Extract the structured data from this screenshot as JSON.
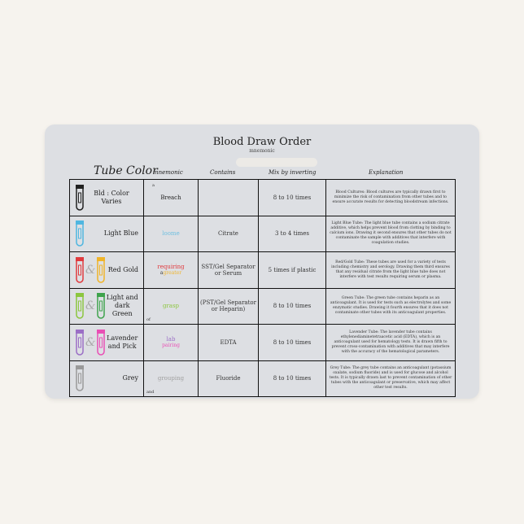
{
  "title": "Blood Draw Order",
  "subtitle": "mnemonic",
  "headers": {
    "tube_color": "Tube Color",
    "mnemonic": "mnemonic",
    "contains": "Contains",
    "mix": "Mix by inverting",
    "explanation": "Explanation"
  },
  "rows": [
    {
      "color_name": "Bld : Color Varies",
      "tubes": [
        "#222222"
      ],
      "mn_small": "a",
      "mn_word": "Breach",
      "mn_color": "#222222",
      "contains": "",
      "mix": "8 to 10 times",
      "explanation": "Blood Cultures: Blood cultures are typically drawn first to minimize the risk of contamination from other tubes and to ensure accurate results for detecting bloodstream infections."
    },
    {
      "color_name": "Light Blue",
      "tubes": [
        "#4fb6e0"
      ],
      "mn_small": "",
      "mn_word": "loome",
      "mn_color": "#6fbfe0",
      "contains": "Citrate",
      "mix": "3 to 4 times",
      "explanation": "Light Blue Tube: The light blue tube contains a sodium citrate additive, which helps prevent blood from clotting by binding to calcium ions. Drawing it second ensures that other tubes do not contaminate the sample with additives that interfere with coagulation studies."
    },
    {
      "color_name": "Red Gold",
      "tubes": [
        "#e03a3e",
        "#f0b429"
      ],
      "mn_small": "",
      "mn_word": "requiring",
      "mn_color": "#e03a3e",
      "mn_word2_prefix": "a",
      "mn_word2": "greater",
      "mn_color2": "#f0b429",
      "contains": "SST/Gel Separator or Serum",
      "mix": "5 times if plastic",
      "explanation": "Red/Gold Tube: These tubes are used for a variety of tests including chemistry and serology. Drawing them third ensures that any residual citrate from the light blue tube does not interfere with test results requiring serum or plasma."
    },
    {
      "color_name": "Light and dark Green",
      "tubes": [
        "#8cc63f",
        "#3fa34d"
      ],
      "mn_small": "of",
      "mn_word": "grasp",
      "mn_color": "#8cc63f",
      "contains": "(PST/Gel Separator or Heparin)",
      "mix": "8 to 10 times",
      "explanation": "Green Tube: The green tube contains heparin as an anticoagulant. It is used for tests such as electrolytes and some enzymatic studies. Drawing it fourth ensures that it does not contaminate other tubes with its anticoagulant properties."
    },
    {
      "color_name": "Lavender and Pick",
      "tubes": [
        "#9b6fc6",
        "#e94fb5"
      ],
      "mn_small": "",
      "mn_word": "lab",
      "mn_color": "#9b6fc6",
      "mn_word2_prefix": "",
      "mn_word2": "pairing",
      "mn_color2": "#e94fb5",
      "contains": "EDTA",
      "mix": "8 to 10 times",
      "explanation": "Lavender Tube: The lavender tube contains ethylenediaminetetraacetic acid (EDTA), which is an anticoagulant used for hematology tests. It is drawn fifth to prevent cross-contamination with additives that may interfere with the accuracy of the hematological parameters."
    },
    {
      "color_name": "Grey",
      "tubes": [
        "#9a9a9a"
      ],
      "mn_small": "and",
      "mn_word": "grouping",
      "mn_color": "#a0a0a0",
      "contains": "Fluoride",
      "mix": "8 to 10 times",
      "explanation": "Grey Tube: The grey tube contains an anticoagulant (potassium oxalate, sodium fluoride) and is used for glucose and alcohol tests. It is typically drawn last to prevent contamination of other tubes with the anticoagulant or preservative, which may affect other test results."
    }
  ],
  "amp": "&"
}
